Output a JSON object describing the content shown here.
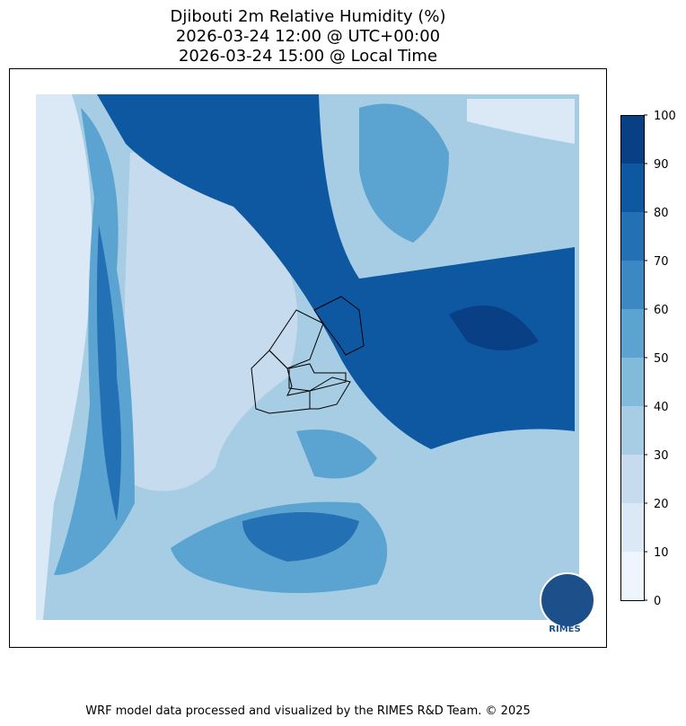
{
  "title": [
    "Djibouti 2m Relative Humidity (%)",
    "2026-03-24 12:00 @ UTC+00:00",
    "2026-03-24 15:00 @ Local Time"
  ],
  "colorbar": {
    "ticks": [
      0,
      10,
      20,
      30,
      40,
      50,
      60,
      70,
      80,
      90,
      100
    ],
    "colors": [
      "#eef5fc",
      "#dbe9f6",
      "#c7dbef",
      "#a6cde3",
      "#82badb",
      "#5ba3d0",
      "#3c88c2",
      "#2470b5",
      "#0e58a2",
      "#083f85"
    ]
  },
  "logo": "RIMES",
  "footer": "WRF model data processed and visualized by the RIMES R&D Team. © 2025"
}
